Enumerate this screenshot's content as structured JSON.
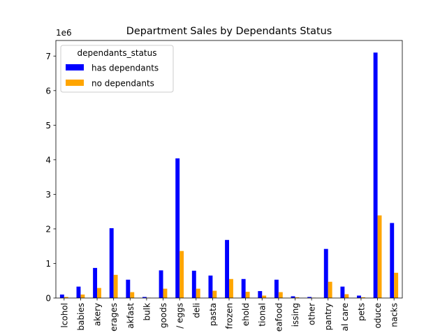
{
  "chart_data": {
    "type": "bar",
    "title": "Department Sales by Dependants Status",
    "xlabel": "",
    "ylabel": "",
    "y_scale_label": "1e6",
    "ylim": [
      0,
      7.45
    ],
    "y_unit_multiplier": 1000000,
    "yticks": [
      0,
      1,
      2,
      3,
      4,
      5,
      6,
      7
    ],
    "grid": false,
    "legend": {
      "title": "dependants_status",
      "location": "top-left"
    },
    "categories": [
      "alcohol",
      "babies",
      "bakery",
      "beverages",
      "breakfast",
      "bulk",
      "canned goods",
      "dairy eggs",
      "deli",
      "dry goods pasta",
      "frozen",
      "household",
      "international",
      "meat seafood",
      "missing",
      "other",
      "pantry",
      "personal care",
      "pets",
      "produce",
      "snacks"
    ],
    "category_labels_visible": [
      "lcohol",
      "babies",
      "akery",
      "erages",
      "akfast",
      "bulk",
      "goods",
      "/ eggs",
      "deli",
      "pasta",
      "frozen",
      "ehold",
      "tional",
      "eafood",
      "issing",
      "other",
      "pantry",
      "al care",
      "pets",
      "oduce",
      "nacks"
    ],
    "series": [
      {
        "name": "has dependants",
        "color": "#0000ff",
        "values": [
          0.1,
          0.33,
          0.87,
          2.02,
          0.53,
          0.03,
          0.8,
          4.04,
          0.79,
          0.65,
          1.68,
          0.55,
          0.2,
          0.53,
          0.05,
          0.03,
          1.42,
          0.33,
          0.07,
          7.1,
          2.17
        ]
      },
      {
        "name": "no dependants",
        "color": "#ffa500",
        "values": [
          0.03,
          0.1,
          0.29,
          0.67,
          0.17,
          0.01,
          0.27,
          1.36,
          0.27,
          0.21,
          0.55,
          0.18,
          0.07,
          0.17,
          0.02,
          0.01,
          0.47,
          0.11,
          0.02,
          2.39,
          0.73
        ]
      }
    ]
  }
}
